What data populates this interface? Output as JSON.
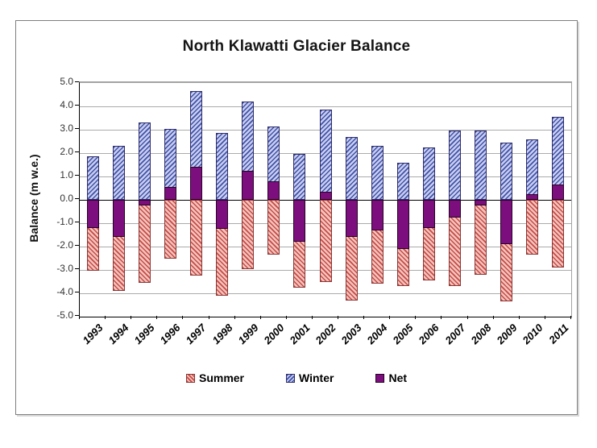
{
  "chart_data": {
    "type": "bar",
    "title": "North Klawatti Glacier Balance",
    "ylabel": "Balance (m w.e.)",
    "xlabel": "",
    "categories": [
      "1993",
      "1994",
      "1995",
      "1996",
      "1997",
      "1998",
      "1999",
      "2000",
      "2001",
      "2002",
      "2003",
      "2004",
      "2005",
      "2006",
      "2007",
      "2008",
      "2009",
      "2010",
      "2011"
    ],
    "series": [
      {
        "name": "Summer",
        "values": [
          -3.05,
          -3.9,
          -3.55,
          -2.5,
          -3.25,
          -4.1,
          -2.95,
          -2.35,
          -3.75,
          -3.5,
          -4.3,
          -3.6,
          -3.7,
          -3.45,
          -3.7,
          -3.2,
          -4.35,
          -2.35,
          -2.9
        ]
      },
      {
        "name": "Winter",
        "values": [
          1.85,
          2.3,
          3.3,
          3.05,
          4.65,
          2.85,
          4.2,
          3.15,
          1.95,
          3.85,
          2.7,
          2.3,
          1.6,
          2.25,
          2.95,
          2.95,
          2.45,
          2.6,
          3.55
        ]
      },
      {
        "name": "Net",
        "values": [
          -1.2,
          -1.6,
          -0.25,
          0.55,
          1.4,
          -1.25,
          1.25,
          0.8,
          -1.8,
          0.35,
          -1.6,
          -1.3,
          -2.1,
          -1.2,
          -0.75,
          -0.25,
          -1.9,
          0.25,
          0.65
        ]
      }
    ],
    "ylim": [
      -5.0,
      5.0
    ],
    "ytick_step": 1.0,
    "ytick_labels": [
      "5.0",
      "4.0",
      "3.0",
      "2.0",
      "1.0",
      "0.0",
      "-1.0",
      "-2.0",
      "-3.0",
      "-4.0",
      "-5.0"
    ],
    "grid": "horizontal",
    "legend_position": "bottom",
    "bar_mode": "overlaid-from-zero",
    "colors": {
      "summer_fill": "#f4c3bd",
      "summer_stripe": "#c64a45",
      "summer_border": "#8a3734",
      "winter_fill": "#c9cdf1",
      "winter_stripe": "#3e52a6",
      "winter_border": "#2d2d6b",
      "net_fill": "#7d0e7d",
      "net_border": "#260326",
      "gridline": "#ababab",
      "zero_line": "#000000",
      "axis": "#000000",
      "frame": "#7f7f7f"
    }
  }
}
